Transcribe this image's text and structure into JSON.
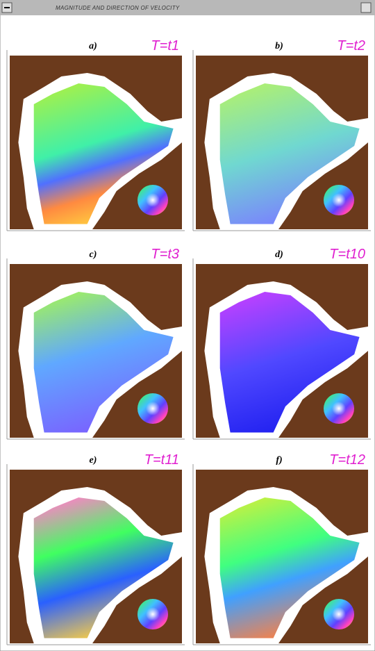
{
  "window": {
    "title": "MAGNITUDE AND DIRECTION OF VELOCITY"
  },
  "panels": [
    {
      "label": "a)",
      "time": "T=t1"
    },
    {
      "label": "b)",
      "time": "T=t2"
    },
    {
      "label": "c)",
      "time": "T=t3"
    },
    {
      "label": "d)",
      "time": "T=t10"
    },
    {
      "label": "e)",
      "time": "T=t11"
    },
    {
      "label": "f)",
      "time": "T=t12"
    }
  ]
}
